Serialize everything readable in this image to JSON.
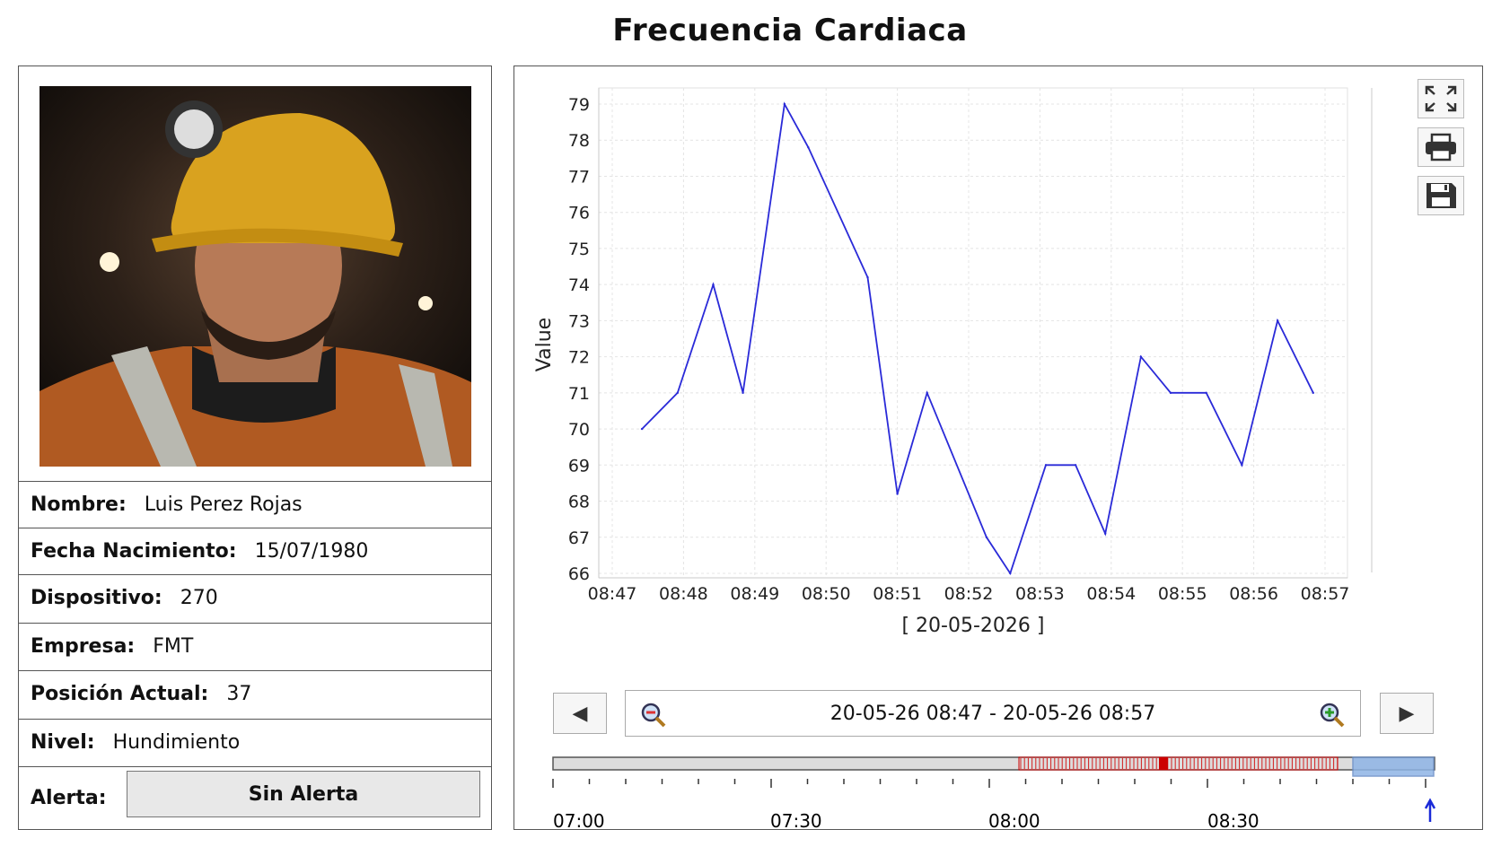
{
  "window": {
    "title": "Frecuencia Cardiaca"
  },
  "profile": {
    "rows": [
      {
        "label": "Nombre:",
        "value": "Luis Perez Rojas"
      },
      {
        "label": "Fecha Nacimiento:",
        "value": "15/07/1980"
      },
      {
        "label": "Dispositivo:",
        "value": "270"
      },
      {
        "label": "Empresa:",
        "value": "FMT"
      },
      {
        "label": "Posición Actual:",
        "value": "37"
      },
      {
        "label": "Nivel:",
        "value": "Hundimiento"
      }
    ],
    "alert_label": "Alerta:",
    "alert_value": "Sin Alerta"
  },
  "toolbar": {
    "icons": [
      "fullscreen-icon",
      "print-icon",
      "save-icon"
    ]
  },
  "navigator": {
    "range_text": "20-05-26 08:47 - 20-05-26 08:57",
    "prev_label": "◀",
    "next_label": "▶",
    "ticks": [
      "07:00",
      "07:30",
      "08:00",
      "08:30"
    ]
  },
  "chart_data": {
    "type": "line",
    "ylabel": "Value",
    "xlabel": "[ 20-05-2026 ]",
    "x_ticks": [
      "08:47",
      "08:48",
      "08:49",
      "08:50",
      "08:51",
      "08:52",
      "08:53",
      "08:54",
      "08:55",
      "08:56",
      "08:57"
    ],
    "ylim": [
      66,
      79
    ],
    "y_ticks": [
      66,
      67,
      68,
      69,
      70,
      71,
      72,
      73,
      74,
      75,
      76,
      77,
      78,
      79
    ],
    "grid": true,
    "line_color": "#2a2ad8",
    "series": [
      {
        "points": [
          {
            "x": "08:47:25",
            "y": 70
          },
          {
            "x": "08:47:55",
            "y": 71
          },
          {
            "x": "08:48:25",
            "y": 74
          },
          {
            "x": "08:48:50",
            "y": 71
          },
          {
            "x": "08:49:25",
            "y": 79
          },
          {
            "x": "08:49:45",
            "y": 77.8
          },
          {
            "x": "08:50:35",
            "y": 74.2
          },
          {
            "x": "08:51:00",
            "y": 68.2
          },
          {
            "x": "08:51:25",
            "y": 71
          },
          {
            "x": "08:52:15",
            "y": 67
          },
          {
            "x": "08:52:35",
            "y": 66
          },
          {
            "x": "08:53:05",
            "y": 69
          },
          {
            "x": "08:53:30",
            "y": 69
          },
          {
            "x": "08:53:55",
            "y": 67.1
          },
          {
            "x": "08:54:25",
            "y": 72
          },
          {
            "x": "08:54:50",
            "y": 71
          },
          {
            "x": "08:55:20",
            "y": 71
          },
          {
            "x": "08:55:50",
            "y": 69
          },
          {
            "x": "08:56:20",
            "y": 73
          },
          {
            "x": "08:56:50",
            "y": 71
          }
        ]
      }
    ]
  }
}
